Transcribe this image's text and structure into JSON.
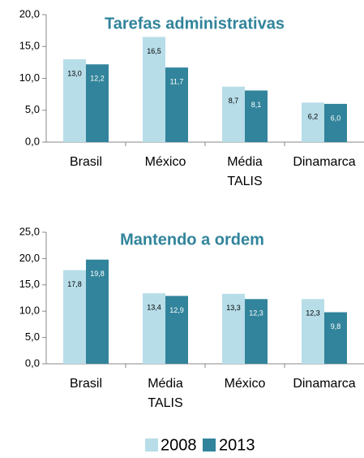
{
  "chart_data": [
    {
      "type": "bar",
      "title": "Tarefas administrativas",
      "categories": [
        "Brasil",
        "México",
        "Média TALIS",
        "Dinamarca"
      ],
      "series": [
        {
          "name": "2008",
          "color": "#b7dde8",
          "values": [
            13.0,
            16.5,
            8.7,
            6.2
          ],
          "value_labels": [
            "13,0",
            "16,5",
            "8,7",
            "6,2"
          ]
        },
        {
          "name": "2013",
          "color": "#31849b",
          "values": [
            12.2,
            11.7,
            8.1,
            6.0
          ],
          "value_labels": [
            "12,2",
            "11,7",
            "8,1",
            "6,0"
          ]
        }
      ],
      "ylim": [
        0,
        20
      ],
      "yticks": [
        {
          "value": 0,
          "label": "0,0"
        },
        {
          "value": 5,
          "label": "5,0"
        },
        {
          "value": 10,
          "label": "10,0"
        },
        {
          "value": 15,
          "label": "15,0"
        },
        {
          "value": 20,
          "label": "20,0"
        }
      ]
    },
    {
      "type": "bar",
      "title": "Mantendo a ordem",
      "categories": [
        "Brasil",
        "Média TALIS",
        "México",
        "Dinamarca"
      ],
      "series": [
        {
          "color": "#b7dde8",
          "values": [
            17.8,
            13.4,
            13.3,
            12.3
          ],
          "value_labels": [
            "17,8",
            "13,4",
            "13,3",
            "12,3"
          ]
        },
        {
          "color": "#31849b",
          "values": [
            19.8,
            12.9,
            12.3,
            9.8
          ],
          "value_labels": [
            "19,8",
            "12,9",
            "12,3",
            "9,8"
          ]
        }
      ],
      "ylim": [
        0,
        25
      ],
      "yticks": [
        {
          "value": 0,
          "label": "0,0"
        },
        {
          "value": 5,
          "label": "5,0"
        },
        {
          "value": 10,
          "label": "10,0"
        },
        {
          "value": 15,
          "label": "15,0"
        },
        {
          "value": 20,
          "label": "20,0"
        },
        {
          "value": 25,
          "label": "25,0"
        }
      ]
    }
  ]
}
